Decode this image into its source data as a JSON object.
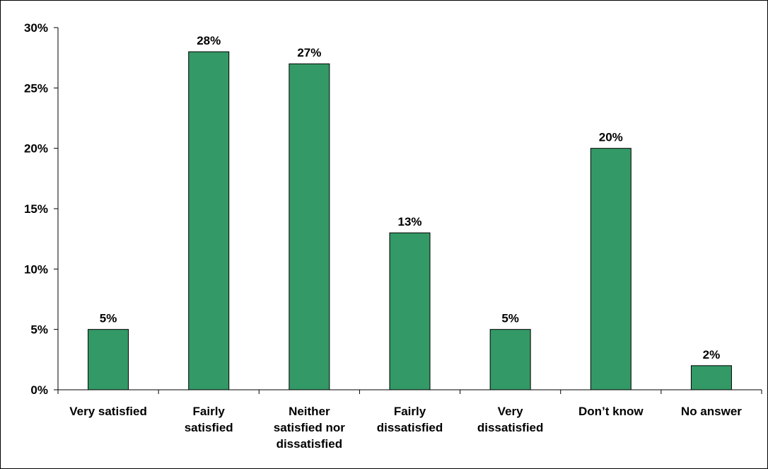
{
  "chart_data": {
    "type": "bar",
    "categories": [
      [
        "Very satisfied"
      ],
      [
        "Fairly",
        "satisfied"
      ],
      [
        "Neither",
        "satisfied nor",
        "dissatisfied"
      ],
      [
        "Fairly",
        "dissatisfied"
      ],
      [
        "Very",
        "dissatisfied"
      ],
      [
        "Don’t know"
      ],
      [
        "No answer"
      ]
    ],
    "values": [
      5,
      28,
      27,
      13,
      5,
      20,
      2
    ],
    "data_labels": [
      "5%",
      "28%",
      "27%",
      "13%",
      "5%",
      "20%",
      "2%"
    ],
    "y_ticks": [
      0,
      5,
      10,
      15,
      20,
      25,
      30
    ],
    "y_tick_labels": [
      "0%",
      "5%",
      "10%",
      "15%",
      "20%",
      "25%",
      "30%"
    ],
    "ylim": [
      0,
      30
    ],
    "title": "",
    "xlabel": "",
    "ylabel": "",
    "grid": false,
    "legend": "none",
    "bar_color": "#339966",
    "bar_outline": "#000000"
  }
}
